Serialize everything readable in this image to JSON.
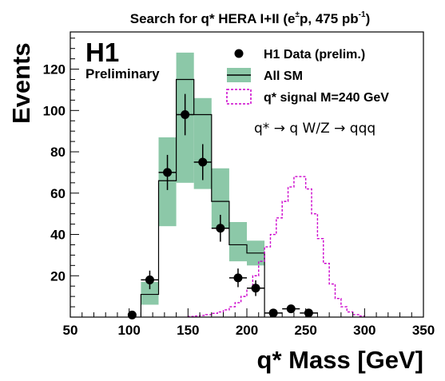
{
  "chart_data": {
    "type": "histogram",
    "title_main": "Search for q* HERA I+II (e",
    "title_sup1": "±",
    "title_mid": "p, 475 pb",
    "title_sup2": "-1",
    "title_end": ")",
    "xlabel": "q* Mass [GeV]",
    "ylabel": "Events",
    "xlim": [
      50,
      350
    ],
    "ylim": [
      0,
      138
    ],
    "x_ticks": [
      50,
      100,
      150,
      200,
      250,
      300,
      350
    ],
    "y_ticks": [
      20,
      40,
      60,
      80,
      100,
      120
    ],
    "experiment_label": "H1",
    "preliminary_label": "Preliminary",
    "annotation": "q* → q W/Z → qqq",
    "legend": {
      "placement": "top-right",
      "entries": [
        {
          "key": "data",
          "label": "H1 Data (prelim.)"
        },
        {
          "key": "sm",
          "label": "All SM"
        },
        {
          "key": "signal",
          "label": "q* signal M=240 GeV"
        }
      ]
    },
    "colors": {
      "band": "#8cc8a8",
      "signal": "#cc00cc",
      "line": "#000000"
    },
    "sm_bins": {
      "edges": [
        110,
        125,
        140,
        155,
        170,
        185,
        200,
        215
      ],
      "values": [
        11,
        66,
        115,
        98,
        56,
        35,
        31
      ],
      "band_low": [
        6,
        44,
        65,
        62,
        43,
        27,
        25
      ],
      "band_high": [
        17,
        87,
        128,
        106,
        72,
        46,
        37
      ]
    },
    "data_points": [
      {
        "x": 102.5,
        "y": 1,
        "ex": 0,
        "ey": 1.2
      },
      {
        "x": 117.5,
        "y": 18,
        "ex": 7.5,
        "ey": 4.5
      },
      {
        "x": 132.5,
        "y": 70,
        "ex": 7.5,
        "ey": 8.5
      },
      {
        "x": 147.5,
        "y": 98,
        "ex": 7.5,
        "ey": 10
      },
      {
        "x": 162.5,
        "y": 75,
        "ex": 7.5,
        "ey": 8.7
      },
      {
        "x": 177.5,
        "y": 43,
        "ex": 7.5,
        "ey": 6.5
      },
      {
        "x": 192.5,
        "y": 19,
        "ex": 7.5,
        "ey": 4.5
      },
      {
        "x": 207.5,
        "y": 14,
        "ex": 7.5,
        "ey": 3.8
      },
      {
        "x": 222.5,
        "y": 2,
        "ex": 7.5,
        "ey": 1.5
      },
      {
        "x": 237.5,
        "y": 4,
        "ex": 7.5,
        "ey": 2
      },
      {
        "x": 252.5,
        "y": 2,
        "ex": 7.5,
        "ey": 1.5
      }
    ],
    "signal_bins": {
      "start": 150,
      "width": 5,
      "values": [
        0.3,
        0.5,
        0.8,
        1.2,
        1.8,
        2.5,
        3.5,
        5,
        7,
        10,
        14,
        20,
        27,
        34,
        40,
        48,
        56,
        63,
        68,
        68,
        62,
        50,
        38,
        26,
        16,
        9,
        5,
        2.5,
        1.2,
        0.5
      ]
    }
  }
}
